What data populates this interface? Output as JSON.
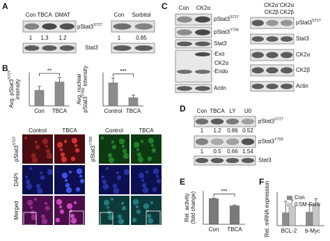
{
  "panel_a": {
    "letter": "A",
    "left": {
      "lanes": [
        "Con",
        "TBCA",
        "DMAT"
      ],
      "quant": [
        1,
        1.3,
        1.2
      ]
    },
    "right": {
      "lanes": [
        "Con",
        "Sorbitol"
      ],
      "quant": [
        1,
        0.85
      ]
    },
    "rows": [
      {
        "label": "pStat3",
        "sup": "S727"
      },
      {
        "label": "Stat3"
      }
    ]
  },
  "panel_b": {
    "letter": "B",
    "charts": [
      {
        "type": "bar",
        "y_label": [
          {
            "label": "Avg. pStat3",
            "sup": "S727"
          },
          {
            "label": "intensity"
          }
        ],
        "categories": [
          "Con",
          "TBCA"
        ],
        "values": [
          28,
          43
        ],
        "errors": [
          7,
          8
        ],
        "ylim": [
          0,
          60
        ],
        "color": "#8c8c8c",
        "significance": "**"
      },
      {
        "type": "bar",
        "y_label": [
          {
            "label": "Avg. nuclear"
          },
          {
            "label": "pStat3",
            "sup": "Y705",
            "after": " intensity"
          }
        ],
        "categories": [
          "Control",
          "TBCA"
        ],
        "values": [
          62,
          22
        ],
        "errors": [
          13,
          7
        ],
        "ylim": [
          0,
          90
        ],
        "color": "#8c8c8c",
        "significance": "***"
      }
    ],
    "images": [
      {
        "columns": [
          "Control",
          "TBCA"
        ],
        "rows": [
          {
            "label": "pStat3",
            "sup": "S727"
          },
          {
            "label": "DAPI"
          },
          {
            "label": "Merged"
          }
        ]
      },
      {
        "columns": [
          "Control",
          "TBCA"
        ],
        "rows": [
          {
            "label": "pStat3",
            "sup": "Y705"
          },
          null,
          null
        ]
      }
    ]
  },
  "panel_c": {
    "letter": "C",
    "left": {
      "lanes": [
        "Con",
        "CK2α"
      ],
      "rows": [
        {
          "label": "pStat3",
          "sup": "S727"
        },
        {
          "label": "pStat3",
          "sup": "Y705"
        },
        {
          "label": "Stat3"
        },
        {
          "label": "CK2α",
          "marks": [
            "-Exo",
            "-Endo"
          ]
        },
        {
          "label": "Actin"
        }
      ]
    },
    "right": {
      "lane_header": [
        [
          "CK2α′",
          "CK2α"
        ],
        [
          "CK2β",
          "CK2β"
        ]
      ],
      "rows": [
        {
          "label": "pStat3",
          "sup": "S727"
        },
        {
          "label": "Stat3"
        },
        {
          "label": "CK2α"
        },
        {
          "label": "CK2β"
        },
        {
          "label": "Actin"
        }
      ]
    }
  },
  "panel_d": {
    "letter": "D",
    "lanes": [
      "Con",
      "TBCA",
      "LY",
      "U0"
    ],
    "rows": [
      {
        "label": "pStat3",
        "sup": "S727",
        "quant": [
          1,
          1.2,
          0.86,
          0.52
        ]
      },
      {
        "label": "pStat3",
        "sup": "Y705",
        "quant": [
          1,
          0.5,
          0.66,
          1.54
        ]
      },
      {
        "label": "Stat3"
      }
    ]
  },
  "panel_e": {
    "letter": "E",
    "chart": {
      "type": "bar",
      "y_label": [
        {
          "label": "Rel. activity"
        },
        {
          "label": "(fold change)"
        }
      ],
      "categories": [
        "Con",
        "TBCA"
      ],
      "values": [
        1,
        0.72
      ],
      "errors": [
        0.02,
        0.03
      ],
      "ylim": [
        0,
        1.3
      ],
      "color": "#7a7a7a",
      "significance": "***"
    }
  },
  "panel_f": {
    "letter": "F",
    "chart": {
      "type": "bar",
      "y_label": [
        {
          "label": "Rel. mRNA expression"
        }
      ],
      "categories": [
        "BCL-2",
        "b-Myc"
      ],
      "ylim": [
        0,
        2.6
      ],
      "series": [
        {
          "name": "Con",
          "color": "#8c8c8c",
          "values": [
            1.0,
            1.05
          ],
          "errors": [
            0.9,
            0.6
          ]
        },
        {
          "name": "0.5M Sorb",
          "color": "#c8c8c8",
          "values": [
            1.5,
            1.65
          ],
          "errors": [
            0.5,
            0.45
          ]
        }
      ]
    }
  }
}
